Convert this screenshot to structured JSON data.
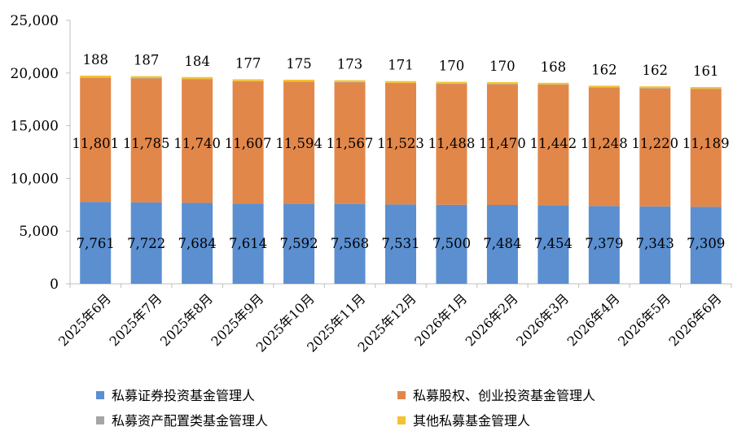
{
  "chart_data": {
    "type": "bar",
    "stacked": true,
    "categories": [
      "2025年6月",
      "2025年7月",
      "2025年8月",
      "2025年9月",
      "2025年10月",
      "2025年11月",
      "2025年12月",
      "2026年1月",
      "2026年2月",
      "2026年3月",
      "2026年4月",
      "2026年5月",
      "2026年6月"
    ],
    "series": [
      {
        "name": "私募证券投资基金管理人",
        "color": "#5b8fd0",
        "values": [
          7761,
          7722,
          7684,
          7614,
          7592,
          7568,
          7531,
          7500,
          7484,
          7454,
          7379,
          7343,
          7309
        ],
        "labels": [
          "7,761",
          "7,722",
          "7,684",
          "7,614",
          "7,592",
          "7,568",
          "7,531",
          "7,500",
          "7,484",
          "7,454",
          "7,379",
          "7,343",
          "7,309"
        ]
      },
      {
        "name": "私募股权、创业投资基金管理人",
        "color": "#e2874a",
        "values": [
          11801,
          11785,
          11740,
          11607,
          11594,
          11567,
          11523,
          11488,
          11470,
          11442,
          11248,
          11220,
          11189
        ],
        "labels": [
          "11,801",
          "11,785",
          "11,740",
          "11,607",
          "11,594",
          "11,567",
          "11,523",
          "11,488",
          "11,470",
          "11,442",
          "11,248",
          "11,220",
          "11,189"
        ]
      },
      {
        "name": "私募资产配置类基金管理人",
        "color": "#a5a5a5",
        "values": [
          9,
          9,
          9,
          9,
          9,
          9,
          9,
          9,
          9,
          9,
          9,
          9,
          9
        ]
      },
      {
        "name": "其他私募基金管理人",
        "color": "#f5c232",
        "values": [
          188,
          187,
          184,
          177,
          175,
          173,
          171,
          170,
          170,
          168,
          162,
          162,
          161
        ],
        "labels": [
          "188",
          "187",
          "184",
          "177",
          "175",
          "173",
          "171",
          "170",
          "170",
          "168",
          "162",
          "162",
          "161"
        ]
      }
    ],
    "yticks": [
      "0",
      "5,000",
      "10,000",
      "15,000",
      "20,000",
      "25,000"
    ],
    "ylim": [
      0,
      25000
    ],
    "grid": false,
    "legend_position": "bottom"
  }
}
